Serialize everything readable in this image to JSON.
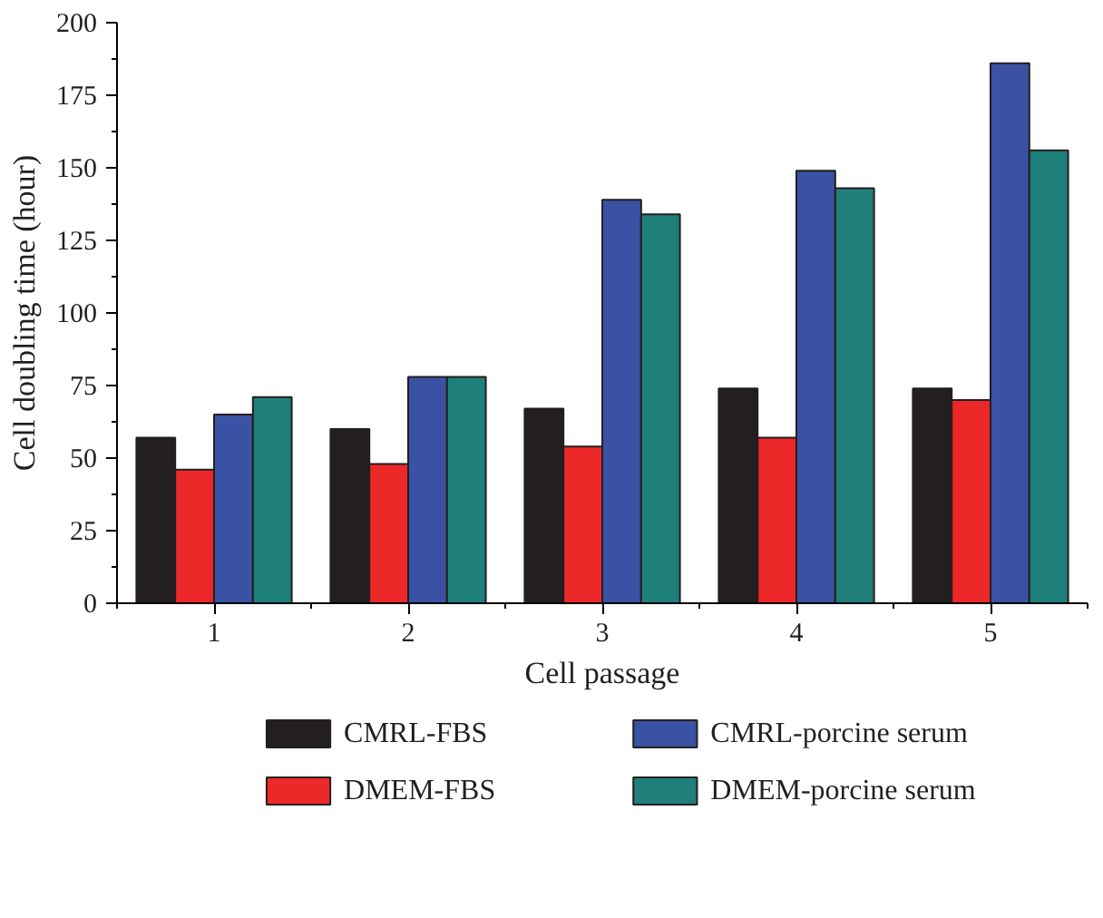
{
  "chart_data": {
    "type": "bar",
    "xlabel": "Cell passage",
    "ylabel": "Cell doubling time (hour)",
    "categories": [
      "1",
      "2",
      "3",
      "4",
      "5"
    ],
    "series": [
      {
        "name": "CMRL-FBS",
        "color": "#231f20",
        "values": [
          57,
          60,
          67,
          74,
          74
        ]
      },
      {
        "name": "DMEM-FBS",
        "color": "#ec2828",
        "values": [
          46,
          48,
          54,
          57,
          70
        ]
      },
      {
        "name": "CMRL-porcine serum",
        "color": "#3a52a3",
        "values": [
          65,
          78,
          139,
          149,
          186
        ]
      },
      {
        "name": "DMEM-porcine serum",
        "color": "#1f7f7a",
        "values": [
          71,
          78,
          134,
          143,
          156
        ]
      }
    ],
    "ylim": [
      0,
      200
    ],
    "yticks": [
      0,
      25,
      50,
      75,
      100,
      125,
      150,
      175,
      200
    ],
    "grid": false,
    "legend": "bottom"
  }
}
